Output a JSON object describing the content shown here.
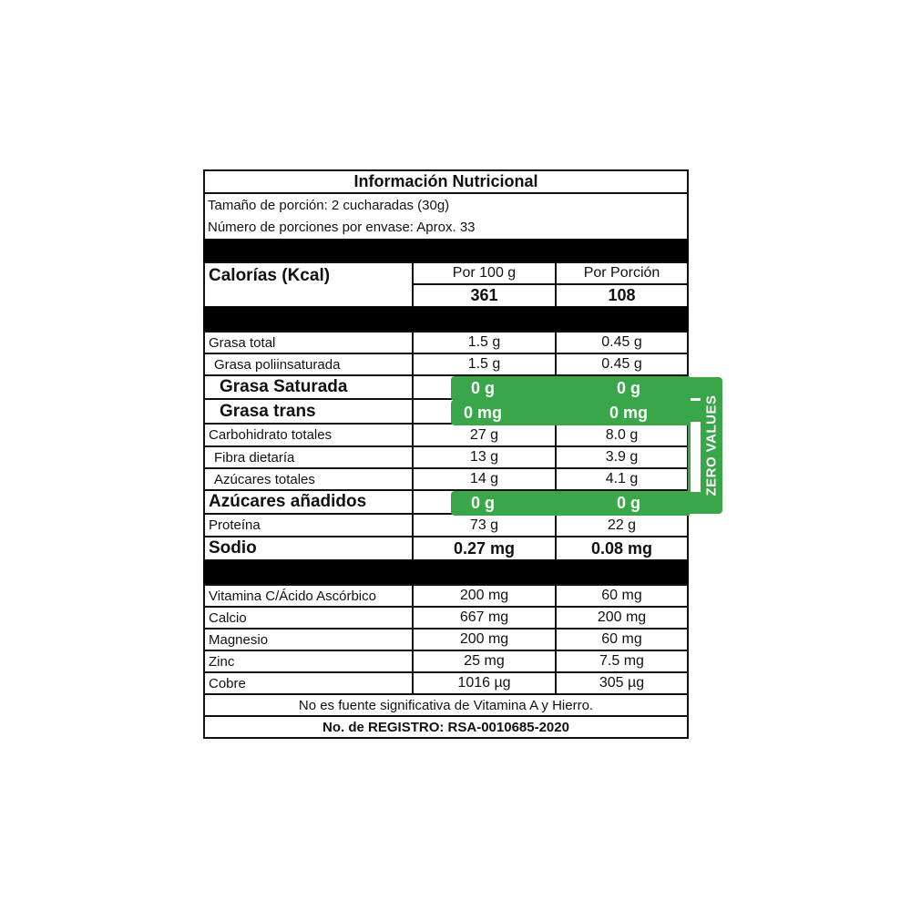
{
  "title": "Información Nutricional",
  "serving_size": "Tamaño de porción: 2 cucharadas (30g)",
  "servings_per_container": "Número de porciones por envase:  Aprox. 33",
  "calories": {
    "label": "Calorías (Kcal)",
    "col1_header": "Por 100 g",
    "col2_header": "Por Porción",
    "col1_value": "361",
    "col2_value": "108"
  },
  "nutrients": [
    {
      "label": "Grasa total",
      "per100": "1.5 g",
      "perServing": "0.45 g"
    },
    {
      "label": "Grasa poliinsaturada",
      "per100": "1.5 g",
      "perServing": "0.45 g"
    },
    {
      "label": "Grasa Saturada",
      "per100": "0 g",
      "perServing": "0 g",
      "highlight": true
    },
    {
      "label": "Grasa trans",
      "per100": "0 mg",
      "perServing": "0 mg",
      "highlight": true
    },
    {
      "label": "Carbohidrato totales",
      "per100": "27 g",
      "perServing": "8.0 g"
    },
    {
      "label": "Fibra dietaría",
      "per100": "13 g",
      "perServing": "3.9 g"
    },
    {
      "label": "Azúcares totales",
      "per100": "14 g",
      "perServing": "4.1 g"
    },
    {
      "label": "Azúcares añadidos",
      "per100": "0 g",
      "perServing": "0 g",
      "highlight": true
    },
    {
      "label": "Proteína",
      "per100": "73 g",
      "perServing": "22 g"
    },
    {
      "label": "Sodio",
      "per100": "0.27 mg",
      "perServing": "0.08 mg"
    }
  ],
  "vitamins": [
    {
      "label": "Vitamina C/Ácido Ascórbico",
      "per100": "200 mg",
      "perServing": "60 mg"
    },
    {
      "label": "Calcio",
      "per100": "667 mg",
      "perServing": "200 mg"
    },
    {
      "label": "Magnesio",
      "per100": "200 mg",
      "perServing": "60 mg"
    },
    {
      "label": "Zinc",
      "per100": "25 mg",
      "perServing": "7.5 mg"
    },
    {
      "label": "Cobre",
      "per100": "1016 µg",
      "perServing": "305 µg"
    }
  ],
  "footnote": "No es fuente significativa de Vitamina A y Hierro.",
  "registration": "No. de REGISTRO: RSA-0010685-2020",
  "zero_badge": {
    "text": "ZERO VALUES",
    "color": "#3aa64a"
  }
}
